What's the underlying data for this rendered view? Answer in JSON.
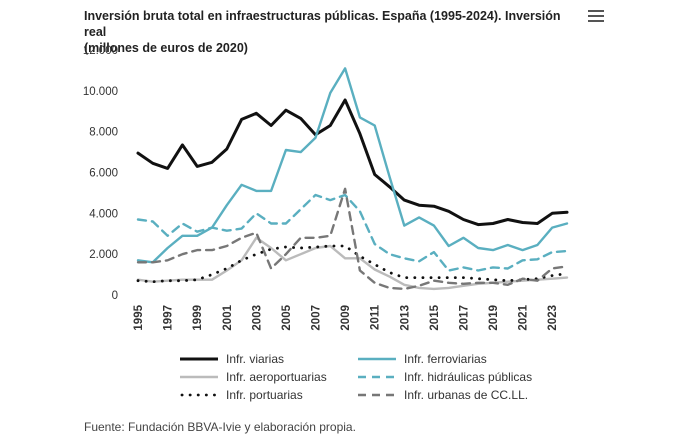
{
  "chart_data": {
    "type": "line",
    "title": "Inversión bruta total en infraestructuras públicas. España (1995-2024). Inversión real (millones de euros de 2020)",
    "xlabel": "",
    "ylabel": "",
    "ylim": [
      0,
      12000
    ],
    "yticks": [
      0,
      2000,
      4000,
      6000,
      8000,
      10000,
      12000
    ],
    "ytick_labels": [
      "0",
      "2.000",
      "4.000",
      "6.000",
      "8.000",
      "10.000",
      "12.000"
    ],
    "x": [
      1995,
      1996,
      1997,
      1998,
      1999,
      2000,
      2001,
      2002,
      2003,
      2004,
      2005,
      2006,
      2007,
      2008,
      2009,
      2010,
      2011,
      2012,
      2013,
      2014,
      2015,
      2016,
      2017,
      2018,
      2019,
      2020,
      2021,
      2022,
      2023,
      2024
    ],
    "xtick_labels": [
      "1995",
      "1997",
      "1999",
      "2001",
      "2003",
      "2005",
      "2007",
      "2009",
      "2011",
      "2013",
      "2015",
      "2017",
      "2019",
      "2021",
      "2023"
    ],
    "series": [
      {
        "name": "Infr. viarias",
        "color": "#111111",
        "dash": "solid",
        "width": 3,
        "values": [
          6950,
          6450,
          6200,
          7350,
          6300,
          6500,
          7150,
          8600,
          8900,
          8300,
          9050,
          8650,
          7850,
          8300,
          9550,
          7900,
          5900,
          5300,
          4650,
          4400,
          4350,
          4100,
          3700,
          3450,
          3500,
          3700,
          3550,
          3500,
          4000,
          4050
        ]
      },
      {
        "name": "Infr. ferroviarias",
        "color": "#5aafc0",
        "dash": "solid",
        "width": 2.4,
        "values": [
          1700,
          1600,
          2300,
          2900,
          2900,
          3300,
          4400,
          5400,
          5100,
          5100,
          7100,
          7000,
          7700,
          9900,
          11100,
          8700,
          8300,
          5800,
          3400,
          3800,
          3400,
          2400,
          2800,
          2300,
          2200,
          2450,
          2200,
          2450,
          3300,
          3500
        ]
      },
      {
        "name": "Infr. aeroportuarias",
        "color": "#bbbbbb",
        "dash": "solid",
        "width": 2.4,
        "values": [
          750,
          650,
          700,
          750,
          750,
          750,
          1200,
          1700,
          2800,
          2300,
          1700,
          2000,
          2300,
          2400,
          1800,
          1800,
          1250,
          900,
          500,
          350,
          300,
          350,
          450,
          550,
          600,
          650,
          700,
          750,
          800,
          850
        ]
      },
      {
        "name": "Infr. hidráulicas públicas",
        "color": "#5aafc0",
        "dash": "dashed",
        "width": 2.4,
        "values": [
          3700,
          3600,
          2900,
          3500,
          3100,
          3300,
          3150,
          3250,
          4000,
          3500,
          3500,
          4200,
          4900,
          4650,
          4900,
          4100,
          2500,
          2000,
          1800,
          1650,
          2100,
          1200,
          1350,
          1200,
          1350,
          1300,
          1700,
          1750,
          2100,
          2150
        ]
      },
      {
        "name": "Infr. portuarias",
        "color": "#111111",
        "dash": "dotted",
        "width": 2.6,
        "values": [
          700,
          650,
          700,
          700,
          750,
          1000,
          1300,
          1700,
          2000,
          2250,
          2350,
          2300,
          2350,
          2400,
          2400,
          1900,
          1500,
          1100,
          850,
          850,
          850,
          850,
          850,
          800,
          750,
          700,
          750,
          800,
          950,
          1050
        ]
      },
      {
        "name": "Infr. urbanas de CC.LL.",
        "color": "#777777",
        "dash": "dashed",
        "width": 2.4,
        "values": [
          1600,
          1600,
          1700,
          2000,
          2200,
          2200,
          2400,
          2800,
          3050,
          1300,
          2000,
          2800,
          2800,
          2900,
          5200,
          1200,
          600,
          350,
          300,
          450,
          700,
          600,
          550,
          600,
          600,
          500,
          800,
          700,
          1300,
          1400
        ]
      }
    ]
  },
  "legend": {
    "items": [
      "Infr. viarias",
      "Infr. ferroviarias",
      "Infr. aeroportuarias",
      "Infr. hidráulicas públicas",
      "Infr. portuarias",
      "Infr. urbanas de CC.LL."
    ]
  },
  "header": {
    "title_line1": "Inversión bruta total en infraestructuras públicas. España (1995-2024). Inversión real",
    "title_line2": "(millones de euros de 2020)",
    "menu_icon": "hamburger-menu-icon"
  },
  "footer": {
    "source": "Fuente: Fundación BBVA-Ivie y elaboración propia."
  }
}
